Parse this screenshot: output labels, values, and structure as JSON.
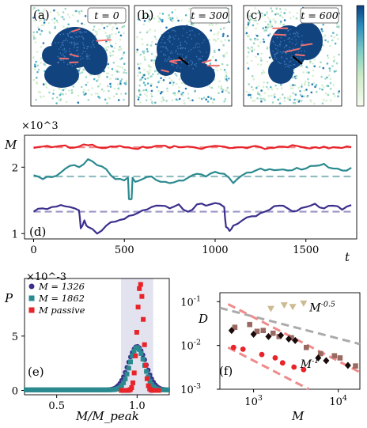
{
  "snapshots": [
    {
      "label": "(a)",
      "time_text": "t = 0"
    },
    {
      "label": "(b)",
      "time_text": "t = 300"
    },
    {
      "label": "(c)",
      "time_text": "t = 600"
    }
  ],
  "colors": {
    "red": "#e8232a",
    "teal": "#2b8a8f",
    "purple": "#3b2f8c",
    "dash_red": "#f08a8a",
    "dash_teal": "#8fbcc0",
    "dash_purple": "#9a96c4",
    "gray_dash": "#aaaaaa",
    "tan": "#cdb992",
    "brown": "#9a6a62",
    "black": "#1a0a0a",
    "band": "#e3e3f0"
  },
  "chart_data": [
    {
      "panel": "(d)",
      "type": "line",
      "ylabel": "M",
      "xlabel": "t",
      "y_multiplier": "×10^3",
      "xlim": [
        -50,
        1780
      ],
      "ylim": [
        0.92,
        2.48
      ],
      "xticks": [
        0,
        500,
        1000,
        1500
      ],
      "yticks": [
        1,
        2
      ],
      "series": [
        {
          "color_key": "red",
          "mean": 2.3,
          "x": [
            0,
            50,
            100,
            150,
            200,
            250,
            300,
            350,
            400,
            450,
            500,
            550,
            600,
            650,
            700,
            750,
            800,
            850,
            900,
            950,
            1000,
            1050,
            1100,
            1150,
            1200,
            1250,
            1300,
            1350,
            1400,
            1450,
            1500,
            1550,
            1600,
            1650,
            1700,
            1750
          ],
          "y": [
            2.29,
            2.31,
            2.3,
            2.32,
            2.29,
            2.31,
            2.33,
            2.3,
            2.29,
            2.31,
            2.3,
            2.28,
            2.31,
            2.3,
            2.32,
            2.29,
            2.3,
            2.31,
            2.29,
            2.3,
            2.32,
            2.31,
            2.29,
            2.3,
            2.31,
            2.3,
            2.29,
            2.31,
            2.3,
            2.32,
            2.29,
            2.3,
            2.31,
            2.3,
            2.29,
            2.3
          ]
        },
        {
          "color_key": "teal",
          "mean": 1.86,
          "x": [
            0,
            50,
            100,
            150,
            200,
            250,
            300,
            350,
            400,
            450,
            500,
            520,
            525,
            540,
            545,
            560,
            600,
            650,
            700,
            750,
            800,
            850,
            900,
            950,
            1000,
            1050,
            1100,
            1150,
            1200,
            1250,
            1300,
            1350,
            1400,
            1450,
            1500,
            1550,
            1600,
            1650,
            1700,
            1750
          ],
          "y": [
            1.88,
            1.82,
            1.85,
            1.92,
            2.02,
            2.0,
            2.12,
            2.03,
            1.97,
            1.82,
            1.8,
            1.84,
            1.52,
            1.52,
            1.84,
            1.78,
            1.82,
            1.86,
            1.78,
            1.76,
            1.8,
            1.84,
            1.9,
            1.86,
            1.93,
            1.9,
            1.76,
            1.88,
            1.92,
            1.98,
            1.97,
            1.96,
            1.95,
            1.99,
            1.98,
            2.02,
            2.05,
            1.98,
            1.95,
            1.99
          ]
        },
        {
          "color_key": "purple",
          "mean": 1.33,
          "x": [
            0,
            50,
            100,
            150,
            200,
            250,
            260,
            280,
            300,
            350,
            400,
            450,
            500,
            550,
            600,
            650,
            700,
            750,
            800,
            850,
            900,
            950,
            1000,
            1050,
            1060,
            1080,
            1100,
            1150,
            1200,
            1250,
            1300,
            1350,
            1400,
            1450,
            1500,
            1550,
            1600,
            1650,
            1700,
            1750
          ],
          "y": [
            1.33,
            1.38,
            1.4,
            1.43,
            1.4,
            1.35,
            1.08,
            1.2,
            1.1,
            1.0,
            1.12,
            1.18,
            1.22,
            1.28,
            1.35,
            1.4,
            1.42,
            1.38,
            1.44,
            1.33,
            1.44,
            1.42,
            1.46,
            1.4,
            1.1,
            1.04,
            1.12,
            1.2,
            1.26,
            1.31,
            1.36,
            1.42,
            1.38,
            1.34,
            1.4,
            1.45,
            1.38,
            1.42,
            1.36,
            1.43
          ]
        }
      ]
    },
    {
      "panel": "(e)",
      "type": "scatter",
      "ylabel": "P",
      "xlabel": "M/M_peak",
      "y_multiplier": "×10^-3",
      "xlim": [
        0.3,
        1.2
      ],
      "ylim": [
        -0.4,
        10.3
      ],
      "xticks": [
        0.5,
        1.0
      ],
      "yticks": [
        0,
        5
      ],
      "band": [
        0.9,
        1.1
      ],
      "legend": [
        {
          "label": "M = 1326",
          "color_key": "purple",
          "marker": "circle"
        },
        {
          "label": "M = 1862",
          "color_key": "teal",
          "marker": "square"
        },
        {
          "label": "M passive",
          "color_key": "red",
          "marker": "square"
        }
      ],
      "curves": [
        {
          "name": "M = 1326",
          "color_key": "purple",
          "marker": "circle",
          "center": 1.0,
          "width": 0.055,
          "peak": 4.0,
          "base": 0.05
        },
        {
          "name": "M = 1862",
          "color_key": "teal",
          "marker": "square",
          "center": 1.0,
          "width": 0.045,
          "peak": 3.9,
          "base": 0.05
        },
        {
          "name": "M passive",
          "color_key": "red",
          "marker": "square",
          "center": 1.02,
          "width": 0.02,
          "peak": 9.8,
          "base": 0.0
        }
      ]
    },
    {
      "panel": "(f)",
      "type": "scatter",
      "xscale": "log",
      "yscale": "log",
      "ylabel": "D",
      "xlabel": "M",
      "xlim": [
        400,
        18000
      ],
      "ylim": [
        0.001,
        0.16
      ],
      "xticks": [
        1000,
        10000
      ],
      "xtick_labels": [
        "10^3",
        "10^4"
      ],
      "yticks": [
        0.001,
        0.01,
        0.1
      ],
      "ytick_labels": [
        "10^-3",
        "10^-2",
        "10^-1"
      ],
      "annotations": [
        {
          "text": "M^-0.5",
          "x": 6500,
          "y": 0.06
        },
        {
          "text": "M^-1",
          "x": 4600,
          "y": 0.0031
        }
      ],
      "lines": [
        {
          "slope": -0.5,
          "x": [
            400,
            18000
          ],
          "y0": 0.072,
          "color_key": "gray_dash"
        },
        {
          "slope": -1.0,
          "x": [
            500,
            18000
          ],
          "y0": 0.088,
          "color_key": "dash_red",
          "note": "upper"
        },
        {
          "slope": -1.0,
          "x": [
            500,
            4500
          ],
          "y0": 0.009,
          "color_key": "dash_red",
          "note": "lower"
        }
      ],
      "series": [
        {
          "color_key": "tan",
          "marker": "triangle-down",
          "points": [
            [
              1600,
              0.068
            ],
            [
              2300,
              0.082
            ],
            [
              2900,
              0.075
            ],
            [
              3900,
              0.09
            ]
          ]
        },
        {
          "color_key": "brown",
          "marker": "square",
          "points": [
            [
              600,
              0.026
            ],
            [
              900,
              0.03
            ],
            [
              1100,
              0.021
            ],
            [
              1300,
              0.022
            ],
            [
              1700,
              0.019
            ],
            [
              2000,
              0.016
            ],
            [
              2800,
              0.015
            ],
            [
              4200,
              0.009
            ],
            [
              6200,
              0.0065
            ],
            [
              9000,
              0.0058
            ],
            [
              10500,
              0.0052
            ],
            [
              16000,
              0.0034
            ]
          ]
        },
        {
          "color_key": "black",
          "marker": "diamond",
          "points": [
            [
              550,
              0.022
            ],
            [
              1000,
              0.018
            ],
            [
              1500,
              0.016
            ],
            [
              2100,
              0.017
            ],
            [
              2600,
              0.014
            ],
            [
              3100,
              0.013
            ],
            [
              5800,
              0.0052
            ],
            [
              7200,
              0.0045
            ],
            [
              13000,
              0.0035
            ]
          ]
        },
        {
          "color_key": "red",
          "marker": "circle",
          "points": [
            [
              580,
              0.009
            ],
            [
              750,
              0.0082
            ],
            [
              1250,
              0.0062
            ],
            [
              1800,
              0.0052
            ],
            [
              2200,
              0.004
            ],
            [
              3000,
              0.0032
            ],
            [
              3900,
              0.0028
            ]
          ]
        }
      ]
    }
  ],
  "panel_labels": {
    "d": "(d)",
    "e": "(e)",
    "f": "(f)"
  }
}
